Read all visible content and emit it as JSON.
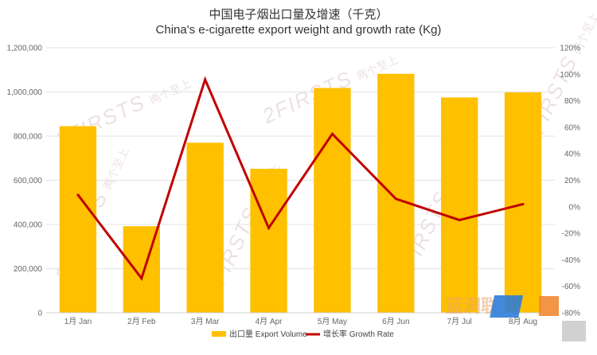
{
  "chart_data": {
    "type": "bar+line",
    "title": "中国电子烟出口量及增速（千克）",
    "subtitle": "China's e-cigarette export weight and growth rate (Kg)",
    "categories": [
      "1月 Jan",
      "2月 Feb",
      "3月 Mar",
      "4月 Apr",
      "5月 May",
      "6月 Jun",
      "7月 Jul",
      "8月 Aug"
    ],
    "series": [
      {
        "name": "出口量 Export Volume",
        "type": "bar",
        "axis": "left",
        "color": "#FFC000",
        "values": [
          845000,
          392000,
          770000,
          652000,
          1018000,
          1082000,
          975000,
          998000
        ]
      },
      {
        "name": "增长率 Growth Rate",
        "type": "line",
        "axis": "right",
        "color": "#C00000",
        "values": [
          9,
          -54,
          96,
          -16,
          55,
          6,
          -10,
          2
        ]
      }
    ],
    "y_left": {
      "ylim": [
        0,
        1200000
      ],
      "ticks": [
        0,
        200000,
        400000,
        600000,
        800000,
        1000000,
        1200000
      ],
      "tick_labels": [
        "0",
        "200,000",
        "400,000",
        "600,000",
        "800,000",
        "1,000,000",
        "1,200,000"
      ]
    },
    "y_right": {
      "ylim": [
        -80,
        120
      ],
      "ticks": [
        -80,
        -60,
        -40,
        -20,
        0,
        20,
        40,
        60,
        80,
        100,
        120
      ],
      "tick_labels": [
        "-80%",
        "-60%",
        "-40%",
        "-20%",
        "0%",
        "20%",
        "40%",
        "60%",
        "80%",
        "100%",
        "120%"
      ]
    },
    "grid": true,
    "legend_position": "bottom"
  },
  "watermark": {
    "brand": "2FIRSTS",
    "brand_cn": "两个至上",
    "corner_logo_text": "蓝洞联"
  }
}
